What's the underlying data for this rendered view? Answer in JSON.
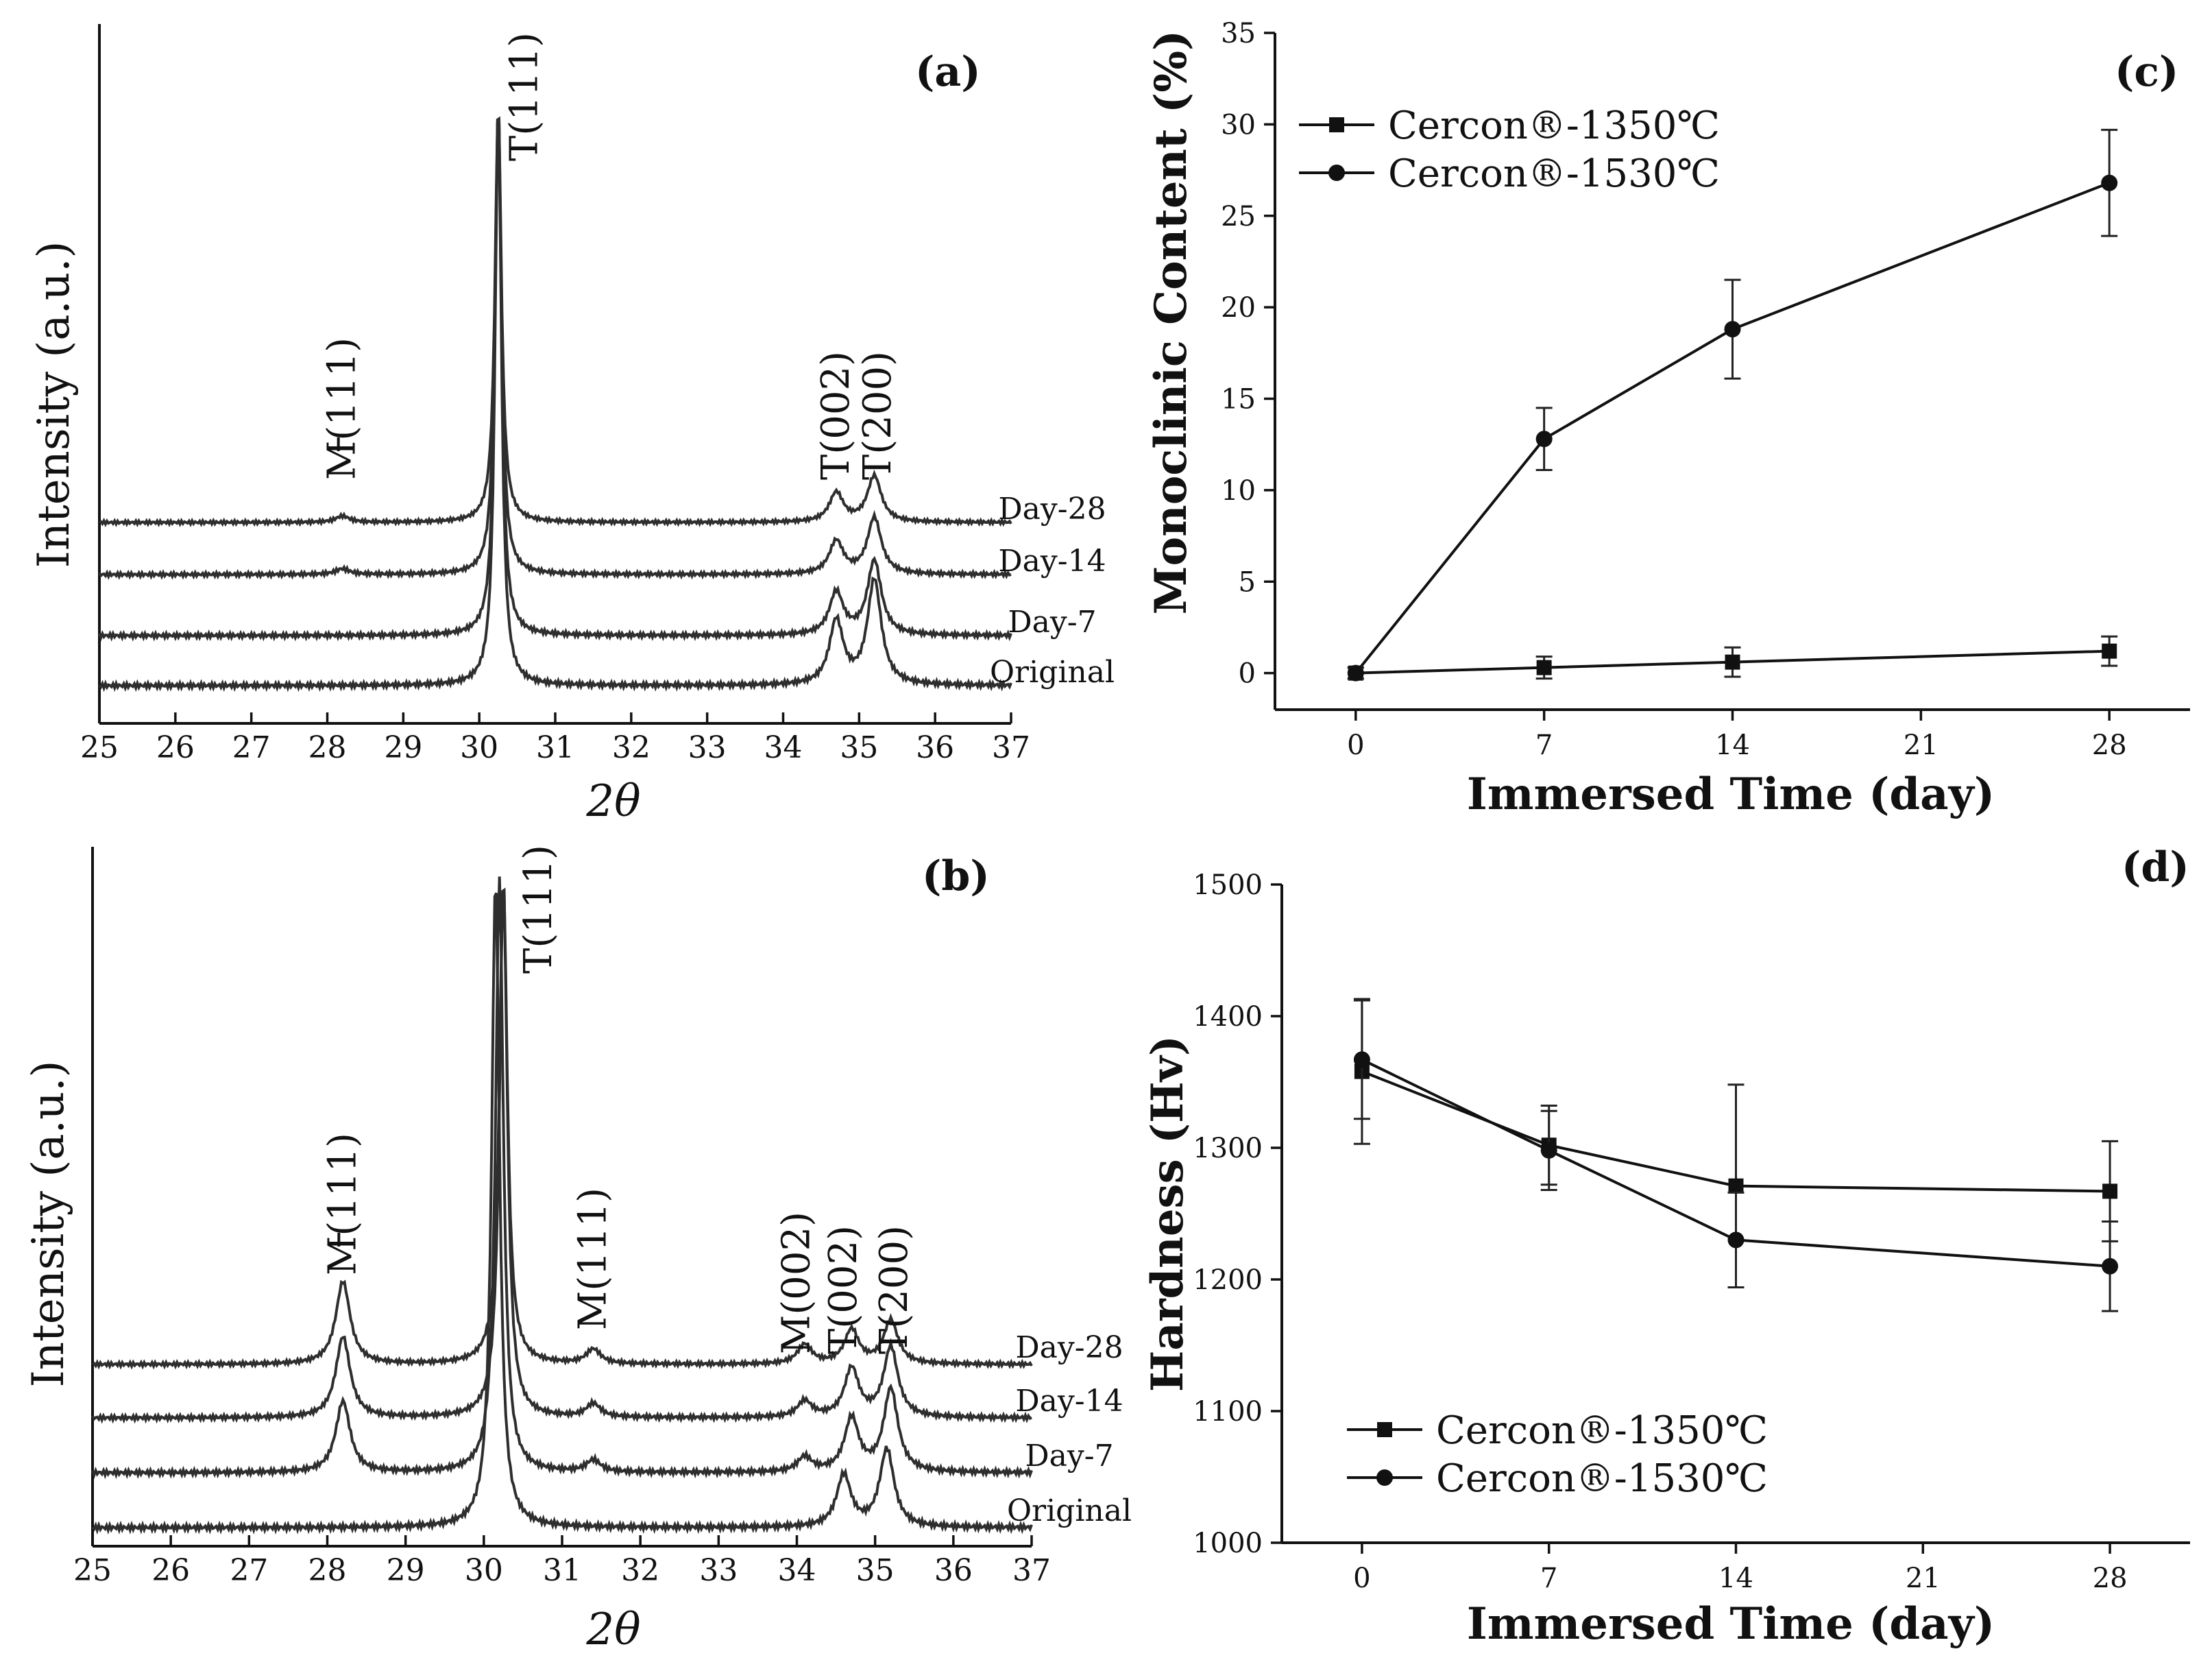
{
  "chart_data": [
    {
      "panel_label": "(a)",
      "type": "line",
      "xlabel": "2θ",
      "ylabel": "Intensity (a.u.)",
      "xlim": [
        25,
        37
      ],
      "xticks": [
        "25",
        "26",
        "27",
        "28",
        "29",
        "30",
        "31",
        "32",
        "33",
        "34",
        "35",
        "36",
        "37"
      ],
      "series": [
        {
          "name": "Day-28",
          "peaks": [
            {
              "x": 28.2,
              "height": 0.015
            },
            {
              "x": 30.25,
              "height": 1.0
            },
            {
              "x": 34.7,
              "height": 0.07
            },
            {
              "x": 35.2,
              "height": 0.11
            }
          ]
        },
        {
          "name": "Day-14",
          "peaks": [
            {
              "x": 28.2,
              "height": 0.012
            },
            {
              "x": 30.25,
              "height": 1.0
            },
            {
              "x": 34.7,
              "height": 0.07
            },
            {
              "x": 35.2,
              "height": 0.12
            }
          ]
        },
        {
          "name": "Day-7",
          "peaks": [
            {
              "x": 30.25,
              "height": 1.0
            },
            {
              "x": 34.7,
              "height": 0.08
            },
            {
              "x": 35.2,
              "height": 0.14
            }
          ]
        },
        {
          "name": "Original",
          "peaks": [
            {
              "x": 30.25,
              "height": 1.0
            },
            {
              "x": 34.7,
              "height": 0.11
            },
            {
              "x": 35.2,
              "height": 0.18
            }
          ]
        }
      ],
      "peak_labels": [
        {
          "text": "M(111)",
          "x": 28.2,
          "overline": "1"
        },
        {
          "text": "T(111)",
          "x": 30.6
        },
        {
          "text": "T(002)",
          "x": 34.7
        },
        {
          "text": "T(200)",
          "x": 35.25
        }
      ]
    },
    {
      "panel_label": "(b)",
      "type": "line",
      "xlabel": "2θ",
      "ylabel": "Intensity (a.u.)",
      "xlim": [
        25,
        37
      ],
      "xticks": [
        "25",
        "26",
        "27",
        "28",
        "29",
        "30",
        "31",
        "32",
        "33",
        "34",
        "35",
        "36",
        "37"
      ],
      "series": [
        {
          "name": "Day-28",
          "peaks": [
            {
              "x": 28.2,
              "height": 0.17
            },
            {
              "x": 30.25,
              "height": 1.0
            },
            {
              "x": 31.4,
              "height": 0.03
            },
            {
              "x": 34.1,
              "height": 0.04
            },
            {
              "x": 34.7,
              "height": 0.07
            },
            {
              "x": 35.2,
              "height": 0.09
            }
          ]
        },
        {
          "name": "Day-14",
          "peaks": [
            {
              "x": 28.2,
              "height": 0.15
            },
            {
              "x": 30.25,
              "height": 1.0
            },
            {
              "x": 31.4,
              "height": 0.025
            },
            {
              "x": 34.1,
              "height": 0.03
            },
            {
              "x": 34.7,
              "height": 0.09
            },
            {
              "x": 35.2,
              "height": 0.13
            }
          ]
        },
        {
          "name": "Day-7",
          "peaks": [
            {
              "x": 28.2,
              "height": 0.12
            },
            {
              "x": 30.2,
              "height": 1.0
            },
            {
              "x": 31.4,
              "height": 0.02
            },
            {
              "x": 34.1,
              "height": 0.025
            },
            {
              "x": 34.7,
              "height": 0.09
            },
            {
              "x": 35.2,
              "height": 0.14
            }
          ]
        },
        {
          "name": "Original",
          "peaks": [
            {
              "x": 30.15,
              "height": 1.0
            },
            {
              "x": 34.6,
              "height": 0.08
            },
            {
              "x": 35.15,
              "height": 0.12
            }
          ]
        }
      ],
      "peak_labels": [
        {
          "text": "M(111)",
          "x": 28.2,
          "overline": "1"
        },
        {
          "text": "T(111)",
          "x": 30.7
        },
        {
          "text": "M(111)",
          "x": 31.4
        },
        {
          "text": "M(002)",
          "x": 34.0
        },
        {
          "text": "T(002)",
          "x": 34.6
        },
        {
          "text": "T(200)",
          "x": 35.25
        }
      ]
    },
    {
      "panel_label": "(c)",
      "type": "line",
      "xlabel": "Immersed Time (day)",
      "ylabel": "Monoclinic Content (%)",
      "xlim": [
        -3,
        31
      ],
      "ylim": [
        -2,
        35
      ],
      "xticks": [
        0,
        7,
        14,
        21,
        28
      ],
      "yticks": [
        0,
        5,
        10,
        15,
        20,
        25,
        30,
        35
      ],
      "legend": "top-left",
      "series": [
        {
          "name": "Cercon®-1350℃",
          "marker": "square",
          "x": [
            0,
            7,
            14,
            28
          ],
          "y": [
            0,
            0.3,
            0.6,
            1.2
          ],
          "err": [
            0.3,
            0.6,
            0.8,
            0.8
          ]
        },
        {
          "name": "Cercon®-1530℃",
          "marker": "circle",
          "x": [
            0,
            7,
            14,
            28
          ],
          "y": [
            0,
            12.8,
            18.8,
            26.8
          ],
          "err": [
            0.3,
            1.7,
            2.7,
            2.9
          ]
        }
      ]
    },
    {
      "panel_label": "(d)",
      "type": "line",
      "xlabel": "Immersed Time (day)",
      "ylabel": "Hardness (Hv)",
      "xlim": [
        -3,
        31
      ],
      "ylim": [
        1000,
        1500
      ],
      "xticks": [
        0,
        7,
        14,
        21,
        28
      ],
      "yticks": [
        1000,
        1100,
        1200,
        1300,
        1400,
        1500
      ],
      "legend": "bottom-left",
      "series": [
        {
          "name": "Cercon®-1350℃",
          "marker": "square",
          "x": [
            0,
            7,
            14,
            28
          ],
          "y": [
            1358,
            1302,
            1271,
            1267
          ],
          "err": [
            55,
            30,
            77,
            38
          ]
        },
        {
          "name": "Cercon®-1530℃",
          "marker": "circle",
          "x": [
            0,
            7,
            14,
            28
          ],
          "y": [
            1367,
            1298,
            1230,
            1210
          ],
          "err": [
            45,
            30,
            36,
            34
          ]
        }
      ]
    }
  ]
}
